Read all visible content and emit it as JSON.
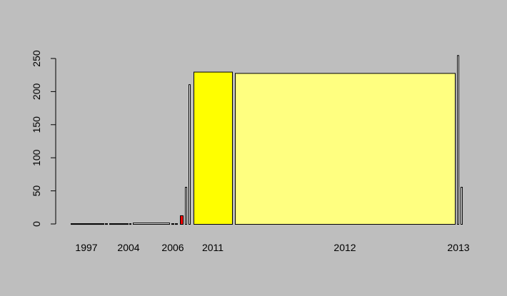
{
  "chart_data": {
    "type": "bar",
    "title": "",
    "xlabel": "",
    "ylabel": "",
    "ylim": [
      0,
      250
    ],
    "y_ticks": [
      0,
      50,
      100,
      150,
      200,
      250
    ],
    "grid": false,
    "legend": "none",
    "x_tick_labels": [
      "1997",
      "2004",
      "2006",
      "2011",
      "2012",
      "2013"
    ],
    "bars": [
      {
        "value": 1,
        "color": "#ffffff"
      },
      {
        "value": 1,
        "color": "#ffffff"
      },
      {
        "value": 1,
        "color": "#ffffff"
      },
      {
        "value": 1,
        "color": "#ffffff"
      },
      {
        "value": 2,
        "color": "#ffffff"
      },
      {
        "value": 1,
        "color": "#ffffff"
      },
      {
        "value": 1,
        "color": "#ffffff"
      },
      {
        "value": 13,
        "color": "#ff0000"
      },
      {
        "value": 56,
        "color": "#ffffff"
      },
      {
        "value": 211,
        "color": "#ffffff"
      },
      {
        "value": 230,
        "color": "#ffff00"
      },
      {
        "value": 228,
        "color": "#ffff80"
      },
      {
        "value": 255,
        "color": "#ffffff"
      },
      {
        "value": 56,
        "color": "#ffffff"
      }
    ]
  }
}
